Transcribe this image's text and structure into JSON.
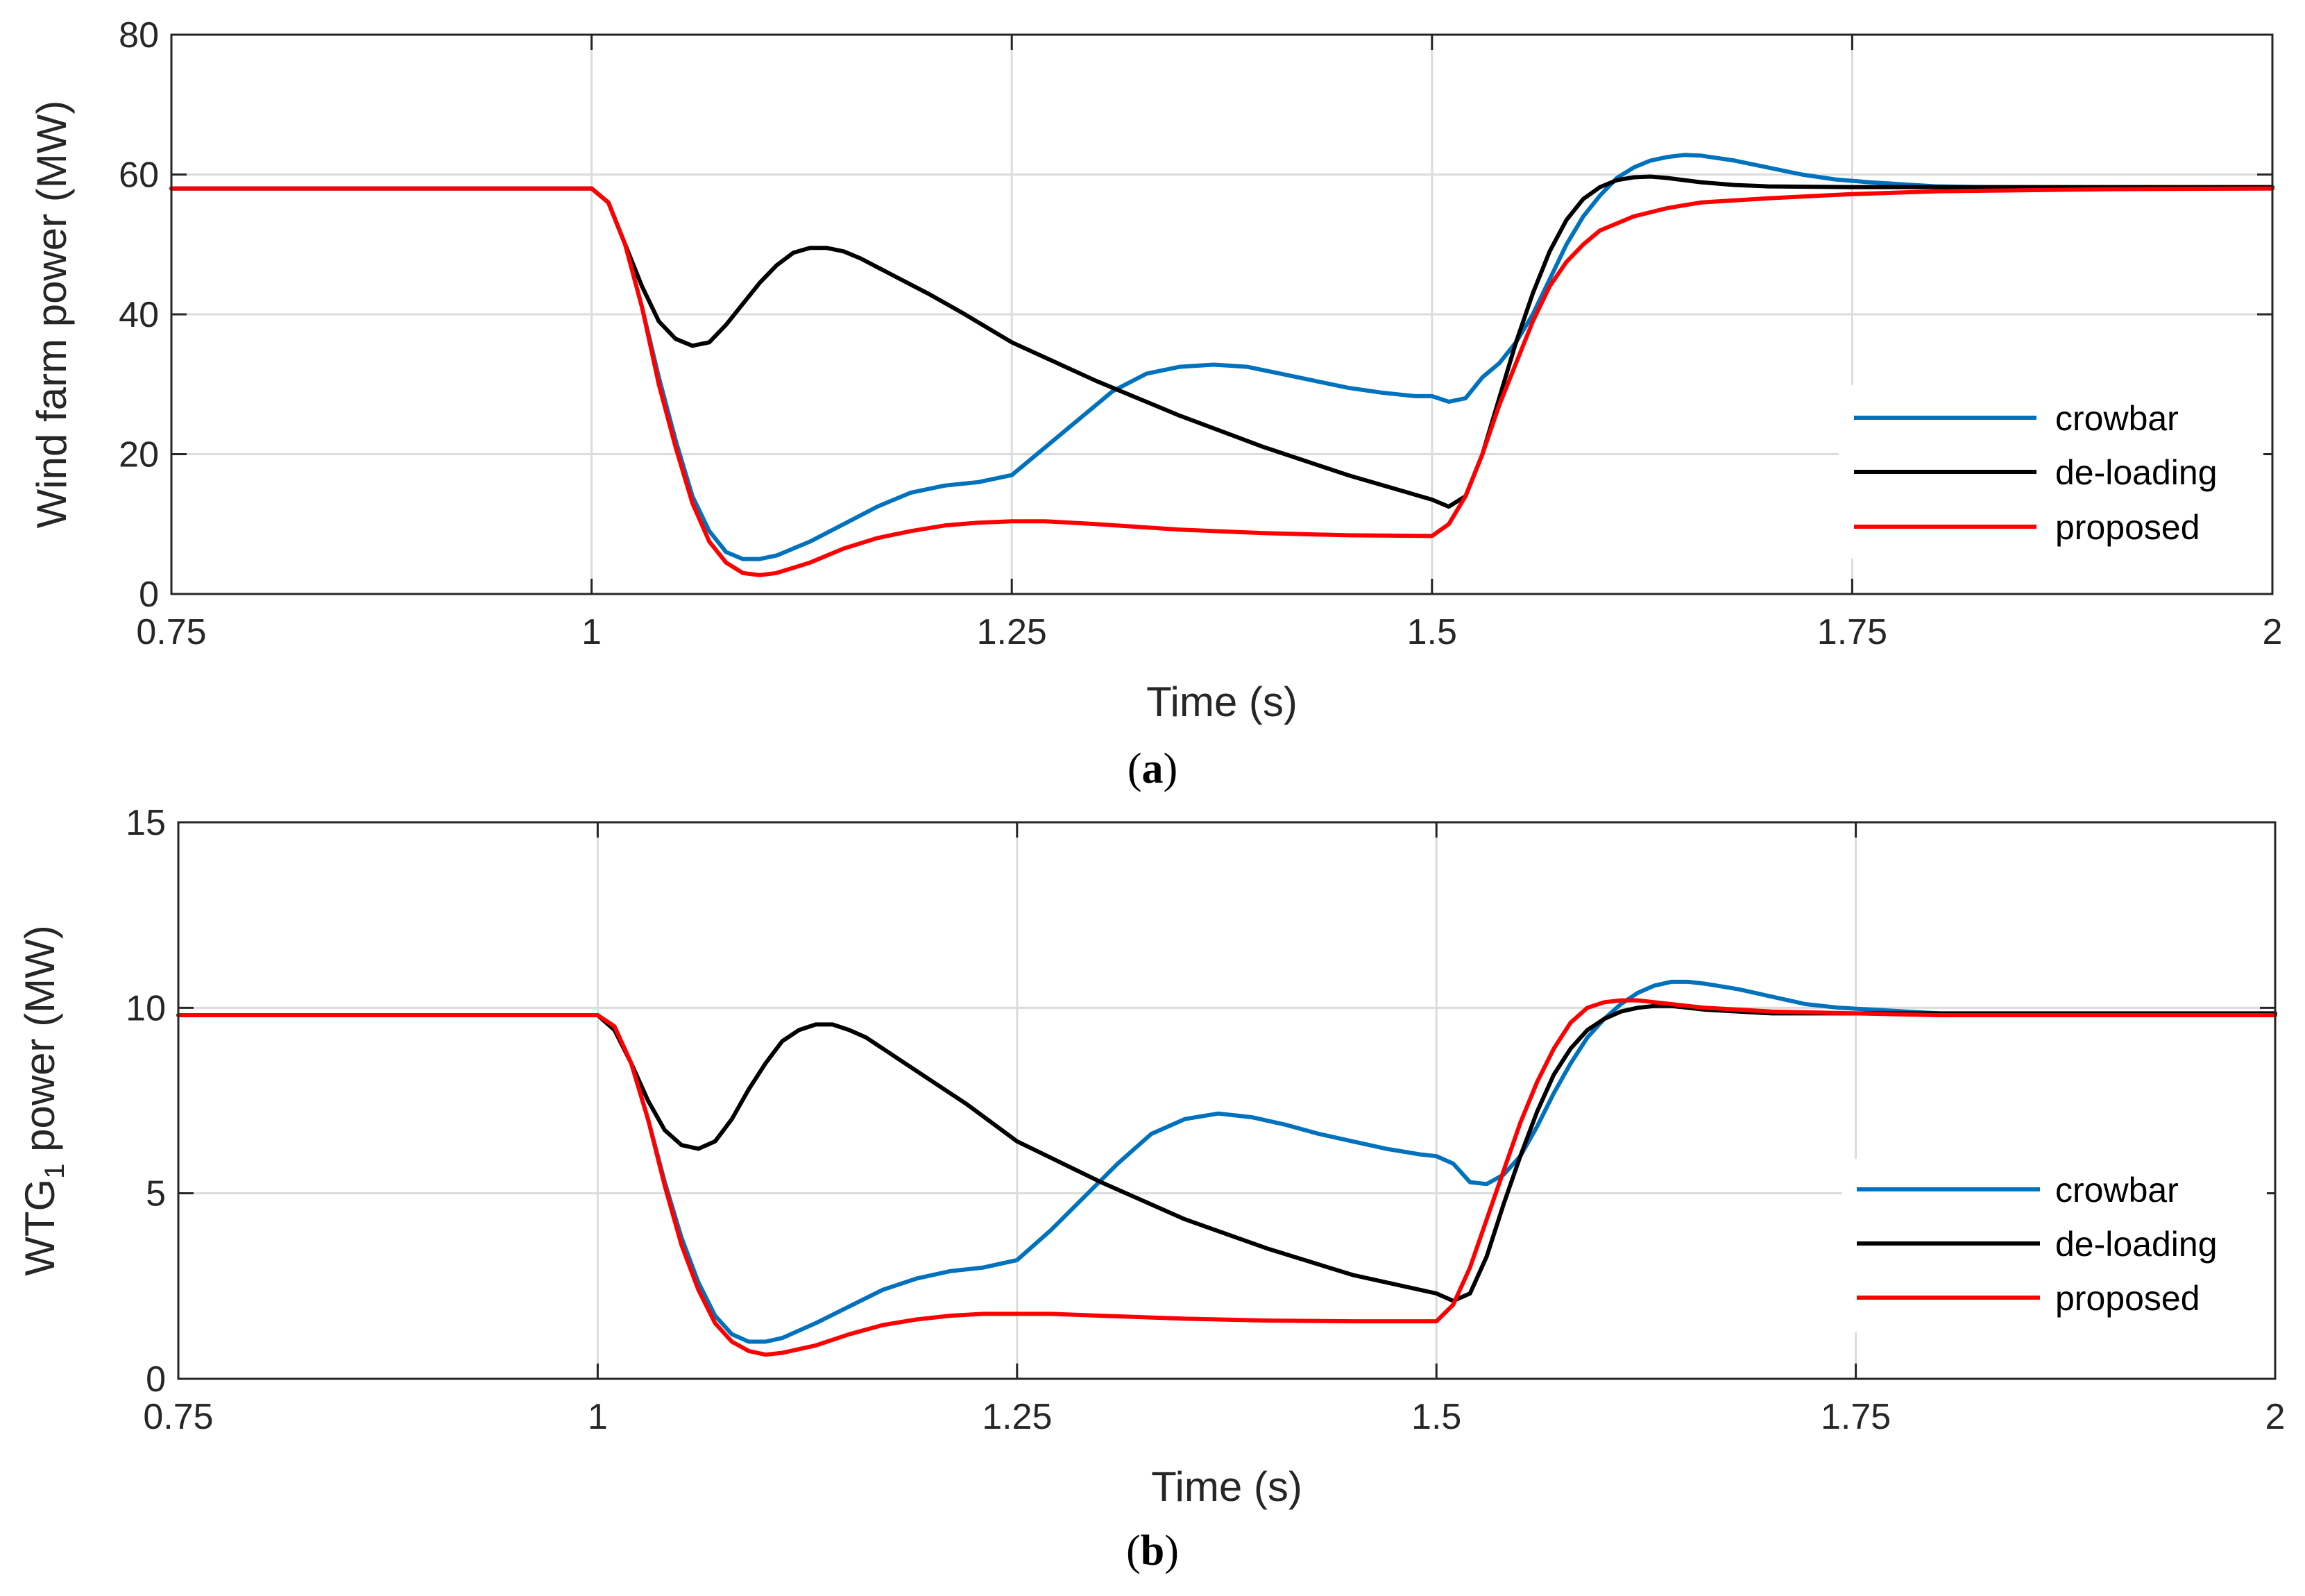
{
  "chart_data": [
    {
      "type": "line",
      "caption_open": "(",
      "caption_letter": "a",
      "caption_close": ")",
      "xlabel": "Time (s)",
      "ylabel": "Wind farm power (MW)",
      "xlim": [
        0.75,
        2
      ],
      "ylim": [
        0,
        80
      ],
      "xticks": [
        0.75,
        1,
        1.25,
        1.5,
        1.75,
        2
      ],
      "xtick_labels": [
        "0.75",
        "1",
        "1.25",
        "1.5",
        "1.75",
        "2"
      ],
      "yticks": [
        0,
        20,
        40,
        60,
        80
      ],
      "ytick_labels": [
        "0",
        "20",
        "40",
        "60",
        "80"
      ],
      "grid": true,
      "legend_position": "lower-right",
      "series": [
        {
          "name": "crowbar",
          "color": "#0072BD",
          "x": [
            0.75,
            1.0,
            1.01,
            1.02,
            1.03,
            1.04,
            1.05,
            1.06,
            1.07,
            1.08,
            1.09,
            1.1,
            1.11,
            1.13,
            1.15,
            1.17,
            1.19,
            1.21,
            1.23,
            1.25,
            1.27,
            1.29,
            1.31,
            1.33,
            1.35,
            1.37,
            1.39,
            1.41,
            1.43,
            1.45,
            1.47,
            1.49,
            1.5,
            1.51,
            1.52,
            1.53,
            1.54,
            1.55,
            1.56,
            1.57,
            1.58,
            1.59,
            1.6,
            1.61,
            1.62,
            1.63,
            1.64,
            1.65,
            1.66,
            1.68,
            1.7,
            1.72,
            1.74,
            1.76,
            1.78,
            1.8,
            1.85,
            1.9,
            2.0
          ],
          "y": [
            58,
            58,
            56,
            50,
            41,
            31,
            22,
            14,
            9,
            6,
            5,
            5,
            5.5,
            7.5,
            10,
            12.5,
            14.5,
            15.5,
            16,
            17,
            21,
            25,
            29,
            31.5,
            32.5,
            32.8,
            32.5,
            31.5,
            30.5,
            29.5,
            28.8,
            28.3,
            28.3,
            27.5,
            28,
            31,
            33,
            36,
            40,
            45,
            50,
            54,
            57,
            59.5,
            61,
            62,
            62.5,
            62.8,
            62.7,
            62,
            61,
            60,
            59.3,
            58.9,
            58.6,
            58.3,
            58.1,
            58.0,
            58.0
          ]
        },
        {
          "name": "de-loading",
          "color": "#000000",
          "x": [
            0.75,
            1.0,
            1.01,
            1.02,
            1.03,
            1.04,
            1.05,
            1.06,
            1.07,
            1.08,
            1.09,
            1.1,
            1.11,
            1.12,
            1.13,
            1.14,
            1.15,
            1.16,
            1.18,
            1.2,
            1.22,
            1.25,
            1.3,
            1.35,
            1.4,
            1.45,
            1.5,
            1.51,
            1.52,
            1.53,
            1.54,
            1.55,
            1.56,
            1.57,
            1.58,
            1.59,
            1.6,
            1.61,
            1.62,
            1.63,
            1.64,
            1.65,
            1.66,
            1.68,
            1.7,
            1.75,
            1.8,
            1.9,
            2.0
          ],
          "y": [
            58,
            58,
            56,
            50,
            44,
            39,
            36.5,
            35.5,
            36,
            38.5,
            41.5,
            44.5,
            47,
            48.8,
            49.5,
            49.5,
            49,
            48,
            45.5,
            43,
            40.3,
            36,
            30.5,
            25.5,
            21,
            17,
            13.5,
            12.5,
            14,
            20,
            28,
            36,
            43,
            49,
            53.5,
            56.5,
            58.2,
            59.2,
            59.6,
            59.7,
            59.5,
            59.2,
            58.9,
            58.5,
            58.3,
            58.2,
            58.2,
            58.2,
            58.2
          ]
        },
        {
          "name": "proposed",
          "color": "#FF0000",
          "x": [
            0.75,
            1.0,
            1.01,
            1.02,
            1.03,
            1.04,
            1.05,
            1.06,
            1.07,
            1.08,
            1.09,
            1.1,
            1.11,
            1.13,
            1.15,
            1.17,
            1.19,
            1.21,
            1.23,
            1.25,
            1.27,
            1.3,
            1.35,
            1.4,
            1.45,
            1.5,
            1.51,
            1.52,
            1.53,
            1.54,
            1.55,
            1.56,
            1.57,
            1.58,
            1.59,
            1.6,
            1.62,
            1.64,
            1.66,
            1.7,
            1.75,
            1.8,
            1.9,
            2.0
          ],
          "y": [
            58,
            58,
            56,
            50,
            41,
            30,
            21,
            13,
            7.5,
            4.5,
            3,
            2.7,
            3,
            4.5,
            6.5,
            8,
            9,
            9.8,
            10.2,
            10.4,
            10.4,
            10,
            9.2,
            8.7,
            8.4,
            8.3,
            10,
            14,
            20,
            27,
            33,
            39,
            44,
            47.5,
            50,
            52,
            54,
            55.2,
            56,
            56.6,
            57.2,
            57.6,
            57.9,
            58.0
          ]
        }
      ]
    },
    {
      "type": "line",
      "caption_open": "(",
      "caption_letter": "b",
      "caption_close": ")",
      "xlabel": "Time (s)",
      "ylabel_main": "WTG",
      "ylabel_sub": "1",
      "ylabel_rest": " power (MW)",
      "xlim": [
        0.75,
        2
      ],
      "ylim": [
        0,
        15
      ],
      "xticks": [
        0.75,
        1,
        1.25,
        1.5,
        1.75,
        2
      ],
      "xtick_labels": [
        "0.75",
        "1",
        "1.25",
        "1.5",
        "1.75",
        "2"
      ],
      "yticks": [
        0,
        5,
        10,
        15
      ],
      "ytick_labels": [
        "0",
        "5",
        "10",
        "15"
      ],
      "grid": true,
      "legend_position": "lower-right",
      "series": [
        {
          "name": "crowbar",
          "color": "#0072BD",
          "x": [
            0.75,
            1.0,
            1.01,
            1.02,
            1.03,
            1.04,
            1.05,
            1.06,
            1.07,
            1.08,
            1.09,
            1.1,
            1.11,
            1.13,
            1.15,
            1.17,
            1.19,
            1.21,
            1.23,
            1.25,
            1.27,
            1.29,
            1.31,
            1.33,
            1.35,
            1.37,
            1.39,
            1.41,
            1.43,
            1.45,
            1.47,
            1.49,
            1.5,
            1.51,
            1.52,
            1.53,
            1.54,
            1.55,
            1.56,
            1.57,
            1.58,
            1.59,
            1.6,
            1.61,
            1.62,
            1.63,
            1.64,
            1.65,
            1.66,
            1.68,
            1.7,
            1.72,
            1.74,
            1.76,
            1.78,
            1.8,
            1.85,
            1.9,
            2.0
          ],
          "y": [
            9.8,
            9.8,
            9.5,
            8.5,
            7.0,
            5.3,
            3.8,
            2.6,
            1.7,
            1.2,
            1.0,
            1.0,
            1.1,
            1.5,
            1.95,
            2.4,
            2.7,
            2.9,
            3.0,
            3.2,
            4.0,
            4.9,
            5.8,
            6.6,
            7.0,
            7.15,
            7.05,
            6.85,
            6.6,
            6.4,
            6.2,
            6.05,
            6.0,
            5.8,
            5.3,
            5.25,
            5.5,
            6.0,
            6.8,
            7.7,
            8.5,
            9.2,
            9.7,
            10.1,
            10.4,
            10.6,
            10.7,
            10.7,
            10.65,
            10.5,
            10.3,
            10.1,
            10.0,
            9.95,
            9.9,
            9.85,
            9.8,
            9.8,
            9.8
          ]
        },
        {
          "name": "de-loading",
          "color": "#000000",
          "x": [
            0.75,
            1.0,
            1.01,
            1.02,
            1.03,
            1.04,
            1.05,
            1.06,
            1.07,
            1.08,
            1.09,
            1.1,
            1.11,
            1.12,
            1.13,
            1.14,
            1.15,
            1.16,
            1.18,
            1.2,
            1.22,
            1.25,
            1.3,
            1.35,
            1.4,
            1.45,
            1.5,
            1.51,
            1.52,
            1.53,
            1.54,
            1.55,
            1.56,
            1.57,
            1.58,
            1.59,
            1.6,
            1.61,
            1.62,
            1.63,
            1.64,
            1.65,
            1.66,
            1.68,
            1.7,
            1.75,
            1.8,
            1.9,
            2.0
          ],
          "y": [
            9.8,
            9.8,
            9.4,
            8.5,
            7.5,
            6.7,
            6.3,
            6.2,
            6.4,
            7.0,
            7.8,
            8.5,
            9.1,
            9.4,
            9.55,
            9.55,
            9.4,
            9.2,
            8.6,
            8.0,
            7.4,
            6.4,
            5.3,
            4.3,
            3.5,
            2.8,
            2.3,
            2.1,
            2.3,
            3.3,
            4.7,
            6.0,
            7.2,
            8.2,
            8.9,
            9.4,
            9.7,
            9.9,
            10.0,
            10.05,
            10.05,
            10.0,
            9.95,
            9.9,
            9.85,
            9.85,
            9.85,
            9.85,
            9.85
          ]
        },
        {
          "name": "proposed",
          "color": "#FF0000",
          "x": [
            0.75,
            1.0,
            1.01,
            1.02,
            1.03,
            1.04,
            1.05,
            1.06,
            1.07,
            1.08,
            1.09,
            1.1,
            1.11,
            1.13,
            1.15,
            1.17,
            1.19,
            1.21,
            1.23,
            1.25,
            1.27,
            1.3,
            1.35,
            1.4,
            1.45,
            1.5,
            1.51,
            1.52,
            1.53,
            1.54,
            1.55,
            1.56,
            1.57,
            1.58,
            1.59,
            1.6,
            1.61,
            1.62,
            1.63,
            1.64,
            1.65,
            1.66,
            1.68,
            1.7,
            1.75,
            1.8,
            1.9,
            2.0
          ],
          "y": [
            9.8,
            9.8,
            9.5,
            8.5,
            7.0,
            5.2,
            3.6,
            2.4,
            1.5,
            1.0,
            0.75,
            0.65,
            0.7,
            0.9,
            1.2,
            1.45,
            1.6,
            1.7,
            1.75,
            1.75,
            1.75,
            1.7,
            1.62,
            1.57,
            1.55,
            1.55,
            2.0,
            3.0,
            4.3,
            5.6,
            6.9,
            8.0,
            8.9,
            9.6,
            10.0,
            10.15,
            10.2,
            10.2,
            10.15,
            10.1,
            10.05,
            10.0,
            9.95,
            9.9,
            9.85,
            9.8,
            9.8,
            9.8
          ]
        }
      ]
    }
  ]
}
